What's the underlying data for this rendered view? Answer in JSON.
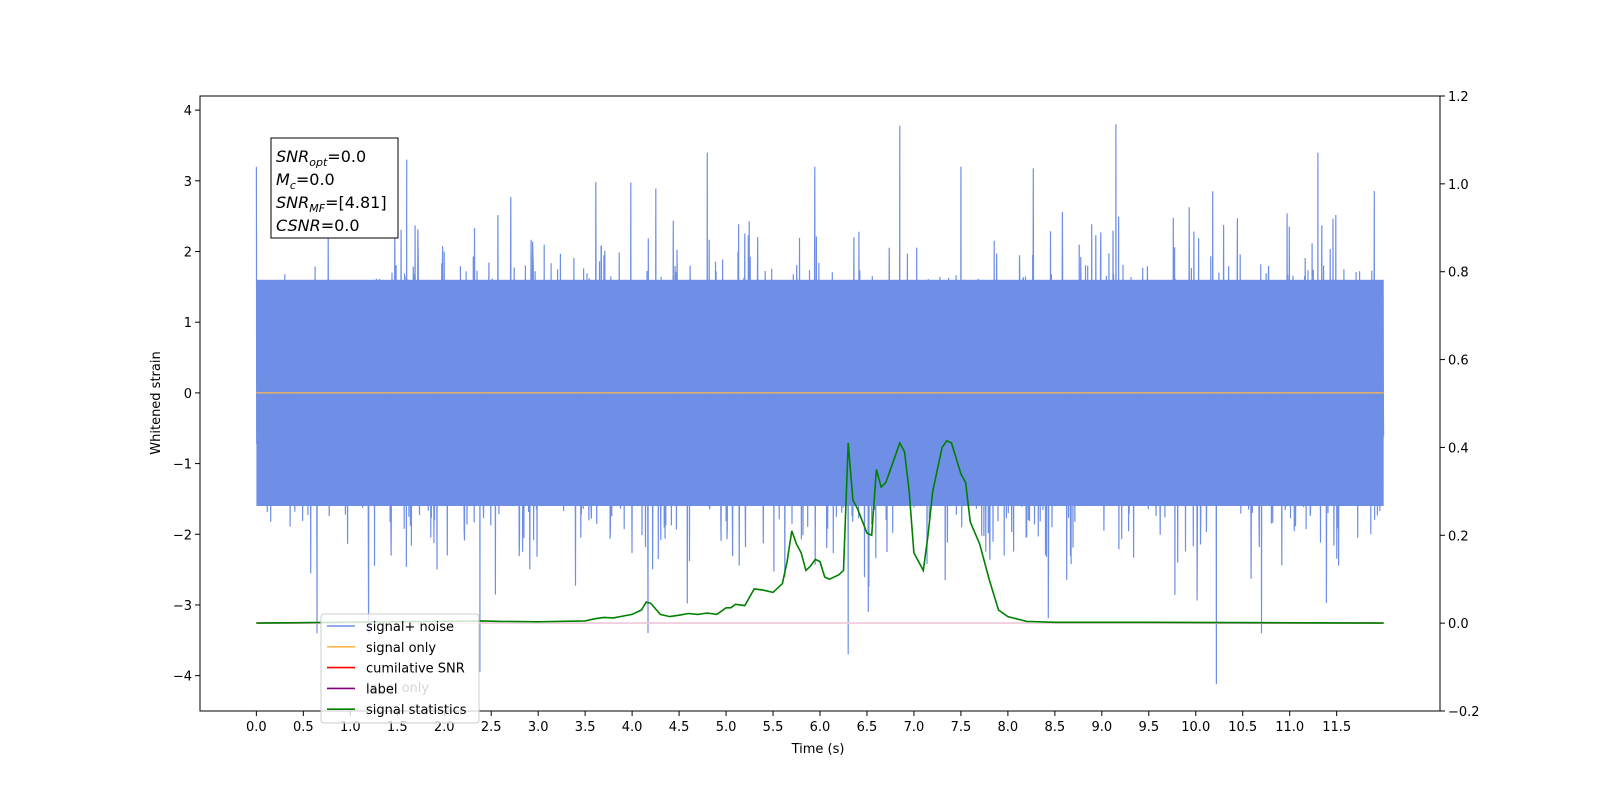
{
  "chart_data": {
    "type": "line",
    "xlabel": "Time (s)",
    "ylabel": "Whitened strain",
    "xlim": [
      -0.6,
      12.6
    ],
    "ylim_left": [
      -4.5,
      4.2
    ],
    "ylim_right": [
      -0.2,
      1.2
    ],
    "x_ticks": [
      0.0,
      0.5,
      1.0,
      1.5,
      2.0,
      2.5,
      3.0,
      3.5,
      4.0,
      4.5,
      5.0,
      5.5,
      6.0,
      6.5,
      7.0,
      7.5,
      8.0,
      8.5,
      9.0,
      9.5,
      10.0,
      10.5,
      11.0,
      11.5
    ],
    "x_tick_labels": [
      "0.0",
      "0.5",
      "1.0",
      "1.5",
      "2.0",
      "2.5",
      "3.0",
      "3.5",
      "4.0",
      "4.5",
      "5.0",
      "5.5",
      "6.0",
      "6.5",
      "7.0",
      "7.5",
      "8.0",
      "8.5",
      "9.0",
      "9.5",
      "10.0",
      "10.5",
      "11.0",
      "11.5"
    ],
    "y_left_ticks": [
      -4,
      -3,
      -2,
      -1,
      0,
      1,
      2,
      3,
      4
    ],
    "y_left_tick_labels": [
      "−4",
      "−3",
      "−2",
      "−1",
      "0",
      "1",
      "2",
      "3",
      "4"
    ],
    "y_right_ticks": [
      -0.2,
      0.0,
      0.2,
      0.4,
      0.6,
      0.8,
      1.0,
      1.2
    ],
    "y_right_tick_labels": [
      "−0.2",
      "0.0",
      "0.2",
      "0.4",
      "0.6",
      "0.8",
      "1.0",
      "1.2"
    ],
    "series": [
      {
        "name": "signal+ noise",
        "axis": "left",
        "color": "#6f8fe6",
        "kind": "noise",
        "x_range": [
          0.0,
          12.0
        ],
        "typical_band": [
          -1.6,
          1.6
        ],
        "extremes": [
          {
            "x": 0.0,
            "y": 3.2
          },
          {
            "x": 6.85,
            "y": 3.78
          },
          {
            "x": 9.15,
            "y": 3.8
          },
          {
            "x": 4.8,
            "y": 3.4
          },
          {
            "x": 11.3,
            "y": 3.4
          },
          {
            "x": 6.3,
            "y": -3.7
          },
          {
            "x": 10.22,
            "y": -4.12
          },
          {
            "x": 2.38,
            "y": -3.95
          },
          {
            "x": 10.7,
            "y": -3.4
          },
          {
            "x": 7.5,
            "y": 3.2
          },
          {
            "x": 1.6,
            "y": 3.3
          }
        ]
      },
      {
        "name": "signal only",
        "axis": "left",
        "color": "#ffb74d",
        "x": [
          0.0,
          12.0
        ],
        "y": [
          0.0,
          0.0
        ]
      },
      {
        "name": "cumilative SNR",
        "axis": "right",
        "color": "#ff0000",
        "x": [
          0.0,
          12.0
        ],
        "y": [
          0.0,
          0.0
        ]
      },
      {
        "name": "label",
        "axis": "right",
        "color": "#800080",
        "x": [
          0.0,
          12.0
        ],
        "y": [
          0.0,
          0.0
        ]
      },
      {
        "name": "label only",
        "axis": "right",
        "color": "#ffffff",
        "x": [
          0.0,
          12.0
        ],
        "y": [
          0.0,
          0.0
        ]
      },
      {
        "name": "signal statistics",
        "axis": "right",
        "color": "#008000",
        "x": [
          0.0,
          2.4,
          2.6,
          3.0,
          3.5,
          3.6,
          3.7,
          3.8,
          3.9,
          4.0,
          4.1,
          4.15,
          4.2,
          4.3,
          4.4,
          4.5,
          4.6,
          4.7,
          4.8,
          4.9,
          5.0,
          5.05,
          5.1,
          5.2,
          5.3,
          5.4,
          5.5,
          5.6,
          5.65,
          5.7,
          5.75,
          5.8,
          5.85,
          5.9,
          5.95,
          6.0,
          6.05,
          6.1,
          6.2,
          6.25,
          6.3,
          6.35,
          6.4,
          6.5,
          6.55,
          6.6,
          6.65,
          6.7,
          6.85,
          6.9,
          6.95,
          7.0,
          7.05,
          7.1,
          7.15,
          7.2,
          7.3,
          7.35,
          7.4,
          7.5,
          7.55,
          7.6,
          7.7,
          7.8,
          7.9,
          8.0,
          8.2,
          8.5,
          9.5,
          12.0
        ],
        "y": [
          0.0,
          0.005,
          0.004,
          0.003,
          0.005,
          0.01,
          0.013,
          0.012,
          0.016,
          0.02,
          0.03,
          0.048,
          0.045,
          0.02,
          0.015,
          0.018,
          0.022,
          0.02,
          0.023,
          0.02,
          0.035,
          0.035,
          0.043,
          0.04,
          0.078,
          0.075,
          0.07,
          0.09,
          0.14,
          0.21,
          0.18,
          0.16,
          0.12,
          0.13,
          0.145,
          0.14,
          0.105,
          0.1,
          0.11,
          0.12,
          0.41,
          0.28,
          0.26,
          0.205,
          0.2,
          0.35,
          0.31,
          0.32,
          0.41,
          0.39,
          0.3,
          0.16,
          0.14,
          0.12,
          0.2,
          0.3,
          0.4,
          0.415,
          0.41,
          0.34,
          0.32,
          0.23,
          0.18,
          0.1,
          0.03,
          0.015,
          0.004,
          0.002,
          0.002,
          0.0
        ]
      }
    ],
    "annotation_box": {
      "lines": [
        {
          "base": "SNR",
          "sub": "opt",
          "rest": "=0.0"
        },
        {
          "base": "M",
          "sub": "c",
          "rest": "=0.0"
        },
        {
          "base": "SNR",
          "sub": "MF",
          "rest": "=[4.81]"
        },
        {
          "base": "CSNR",
          "sub": "",
          "rest": "=0.0"
        }
      ]
    },
    "legend": {
      "placement": "lower-left",
      "entries": [
        {
          "label": "signal+ noise",
          "color": "#6f8fe6"
        },
        {
          "label": "signal only",
          "color": "#ffb74d"
        },
        {
          "label": "cumilative SNR",
          "color": "#ff0000"
        },
        {
          "label": "label",
          "color": "#800080"
        },
        {
          "label": "signal statistics",
          "color": "#008000"
        }
      ],
      "ghost_label": "label only"
    }
  }
}
